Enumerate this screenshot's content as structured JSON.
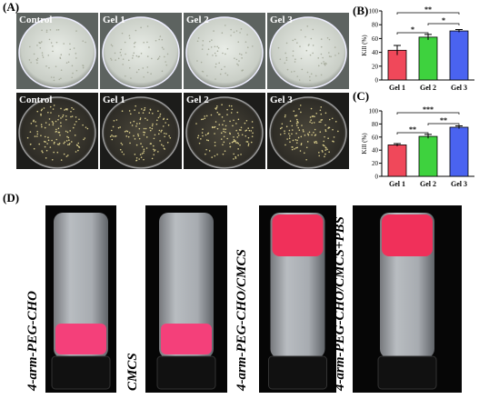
{
  "panels": {
    "a": {
      "label": "(A)",
      "photos": [
        "Control",
        "Gel 1",
        "Gel 2",
        "Gel 3",
        "Control",
        "Gel 1",
        "Gel 2",
        "Gel 3"
      ]
    },
    "d": {
      "label": "(D)",
      "vials": [
        "4-arm-PEG-CHO",
        "CMCS",
        "4-arm-PEG-CHO/CMCS",
        "4-arm-PEG-CHO/CMCS+PBS"
      ]
    }
  },
  "chart_data": [
    {
      "type": "bar",
      "panel": "(B)",
      "y_label": "Kill (%)",
      "categories": [
        "Gel 1",
        "Gel 2",
        "Gel 3"
      ],
      "values": [
        43,
        62,
        71
      ],
      "errors": [
        7,
        4,
        2
      ],
      "colors": [
        "#f0485a",
        "#3ed23e",
        "#4a63f0"
      ],
      "ylim": [
        0,
        100
      ],
      "yticks": [
        0,
        20,
        40,
        60,
        80,
        100
      ],
      "significance": [
        "*",
        "*",
        "**"
      ]
    },
    {
      "type": "bar",
      "panel": "(C)",
      "y_label": "Kill (%)",
      "categories": [
        "Gel 1",
        "Gel 2",
        "Gel 3"
      ],
      "values": [
        48,
        61,
        75
      ],
      "errors": [
        2,
        3,
        2
      ],
      "colors": [
        "#f0485a",
        "#3ed23e",
        "#4a63f0"
      ],
      "ylim": [
        0,
        100
      ],
      "yticks": [
        0,
        20,
        40,
        60,
        80,
        100
      ],
      "significance": [
        "**",
        "**",
        "***"
      ]
    }
  ]
}
